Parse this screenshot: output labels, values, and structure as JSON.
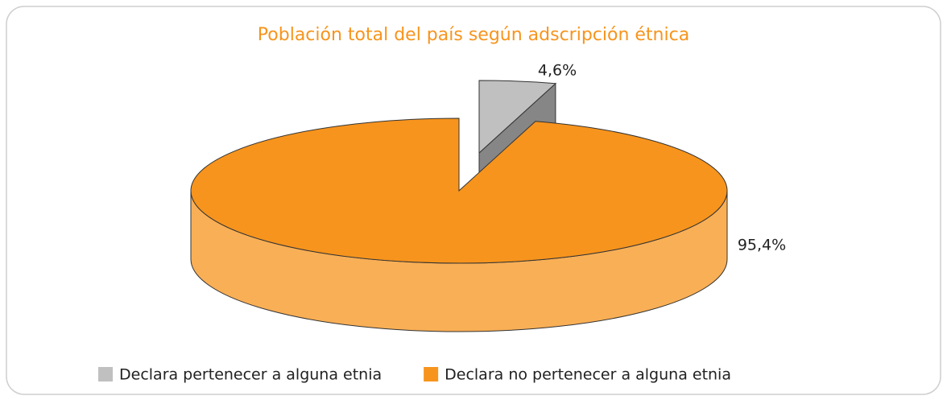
{
  "chart_data": {
    "type": "pie",
    "title": "Población total del país según adscripción étnica",
    "categories": [
      "Declara pertenecer a alguna etnia",
      "Declara no pertenecer a alguna etnia"
    ],
    "values": [
      4.6,
      95.4
    ],
    "value_labels": [
      "4,6%",
      "95,4%"
    ],
    "colors": [
      "#c0c0c0",
      "#f7941d"
    ],
    "legend": "bottom"
  }
}
